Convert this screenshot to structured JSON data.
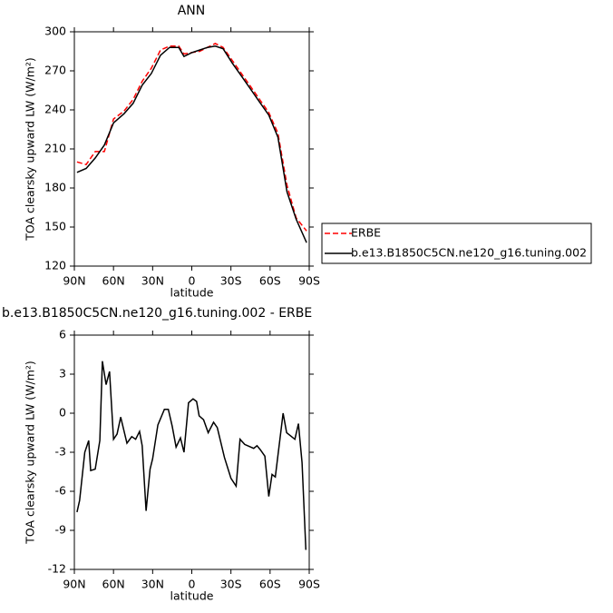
{
  "chart_data": [
    {
      "type": "line",
      "title": "ANN",
      "xlabel": "latitude",
      "ylabel": "TOA clearsky upward LW (W/m²)",
      "x": [
        88,
        81,
        74,
        67,
        60,
        52,
        45,
        38,
        31,
        24,
        17,
        10,
        6,
        0,
        -6,
        -12,
        -18,
        -24,
        -31,
        -38,
        -45,
        -52,
        -59,
        -66,
        -73,
        -80,
        -88
      ],
      "series": [
        {
          "name": "ERBE",
          "color": "#ff0000",
          "dash": true,
          "values": [
            200,
            198,
            208,
            208,
            233,
            239,
            248,
            262,
            272,
            286,
            289,
            289,
            283,
            284,
            285,
            288,
            291,
            288,
            278,
            268,
            258,
            248,
            238,
            222,
            182,
            157,
            147
          ]
        },
        {
          "name": "b.e13.B1850C5CN.ne120_g16.tuning.002",
          "color": "#000000",
          "dash": false,
          "values": [
            192,
            195,
            203,
            213,
            230,
            237,
            245,
            259,
            268,
            282,
            288,
            288,
            281,
            284,
            286,
            288,
            289,
            287,
            276,
            266,
            256,
            246,
            236,
            219,
            177,
            156,
            138
          ]
        }
      ],
      "xlim": [
        90,
        -90
      ],
      "ylim": [
        120,
        300
      ],
      "xticks": [
        {
          "value": 90,
          "label": "90N"
        },
        {
          "value": 60,
          "label": "60N"
        },
        {
          "value": 30,
          "label": "30N"
        },
        0,
        {
          "value": -30,
          "label": "30S"
        },
        {
          "value": -60,
          "label": "60S"
        },
        {
          "value": -90,
          "label": "90S"
        }
      ],
      "yticks": [
        120,
        150,
        180,
        210,
        240,
        270,
        300
      ]
    },
    {
      "type": "line",
      "title": "b.e13.B1850C5CN.ne120_g16.tuning.002 - ERBE",
      "xlabel": "latitude",
      "ylabel": "TOA clearsky upward LW (W/m²)",
      "x": [
        88,
        86,
        82,
        79,
        77.5,
        74,
        70.5,
        68.5,
        65.7,
        63,
        60,
        57.3,
        54.5,
        49.7,
        46,
        43,
        40,
        38,
        35,
        32,
        30,
        26,
        21,
        18,
        15,
        12,
        8.7,
        6,
        2.5,
        -1,
        -3.7,
        -5.6,
        -9,
        -12.6,
        -16.7,
        -19.5,
        -25,
        -30,
        -34,
        -37,
        -40.6,
        -47.5,
        -50,
        -52.5,
        -56,
        -59,
        -61.5,
        -64,
        -70,
        -72.7,
        -79,
        -81.7,
        -84.5,
        -87.4
      ],
      "values": [
        -7.6,
        -6.7,
        -3,
        -2.1,
        -4.4,
        -4.3,
        -2.1,
        4.0,
        2.2,
        3.2,
        -2.0,
        -1.6,
        -0.3,
        -2.3,
        -1.8,
        -2.0,
        -1.4,
        -2.5,
        -7.5,
        -4.3,
        -3.5,
        -0.9,
        0.3,
        0.3,
        -1.0,
        -2.6,
        -1.9,
        -3.0,
        0.8,
        1.1,
        0.9,
        -0.2,
        -0.5,
        -1.5,
        -0.7,
        -1.1,
        -3.4,
        -5.0,
        -5.6,
        -2.0,
        -2.4,
        -2.7,
        -2.5,
        -2.8,
        -3.3,
        -6.4,
        -4.7,
        -4.9,
        0.0,
        -1.5,
        -2.0,
        -0.8,
        -3.8,
        -10.5
      ],
      "color": "#000000",
      "xlim": [
        90,
        -90
      ],
      "ylim": [
        -12,
        6
      ],
      "xticks": [
        {
          "value": 90,
          "label": "90N"
        },
        {
          "value": 60,
          "label": "60N"
        },
        {
          "value": 30,
          "label": "30N"
        },
        0,
        {
          "value": -30,
          "label": "30S"
        },
        {
          "value": -60,
          "label": "60S"
        },
        {
          "value": -90,
          "label": "90S"
        }
      ],
      "yticks": [
        -12,
        -9,
        -6,
        -3,
        0,
        3,
        6
      ]
    }
  ]
}
